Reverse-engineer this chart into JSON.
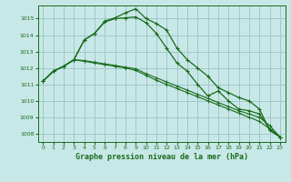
{
  "background_color": "#c8e8e8",
  "grid_color": "#a0c8c8",
  "line_color": "#1a6b1a",
  "title": "Graphe pression niveau de la mer (hPa)",
  "ylim": [
    1007.5,
    1015.8
  ],
  "xlim": [
    -0.5,
    23.5
  ],
  "yticks": [
    1008,
    1009,
    1010,
    1011,
    1012,
    1013,
    1014,
    1015
  ],
  "xticks": [
    0,
    1,
    2,
    3,
    4,
    5,
    6,
    7,
    8,
    9,
    10,
    11,
    12,
    13,
    14,
    15,
    16,
    17,
    18,
    19,
    20,
    21,
    22,
    23
  ],
  "series": [
    [
      1011.2,
      1011.8,
      1012.1,
      1012.5,
      1013.7,
      1014.1,
      1014.85,
      1015.05,
      1015.35,
      1015.6,
      1015.0,
      1014.7,
      1014.3,
      1013.2,
      1012.5,
      1012.0,
      1011.5,
      1010.8,
      1010.5,
      1010.2,
      1010.0,
      1009.5,
      1008.2,
      1007.8
    ],
    [
      1011.2,
      1011.8,
      1012.1,
      1012.5,
      1013.7,
      1014.1,
      1014.8,
      1015.0,
      1015.05,
      1015.1,
      1014.75,
      1014.1,
      1013.2,
      1012.3,
      1011.8,
      1011.0,
      1010.3,
      1010.6,
      1010.0,
      1009.5,
      1009.4,
      1009.2,
      1008.3,
      1007.8
    ],
    [
      1011.2,
      1011.8,
      1012.1,
      1012.5,
      1012.45,
      1012.35,
      1012.25,
      1012.15,
      1012.05,
      1011.95,
      1011.65,
      1011.4,
      1011.15,
      1010.9,
      1010.65,
      1010.4,
      1010.15,
      1009.9,
      1009.65,
      1009.4,
      1009.2,
      1009.0,
      1008.5,
      1007.8
    ],
    [
      1011.2,
      1011.8,
      1012.1,
      1012.5,
      1012.4,
      1012.3,
      1012.2,
      1012.1,
      1012.0,
      1011.85,
      1011.55,
      1011.25,
      1011.0,
      1010.75,
      1010.5,
      1010.25,
      1010.0,
      1009.75,
      1009.5,
      1009.25,
      1009.0,
      1008.75,
      1008.3,
      1007.8
    ]
  ]
}
